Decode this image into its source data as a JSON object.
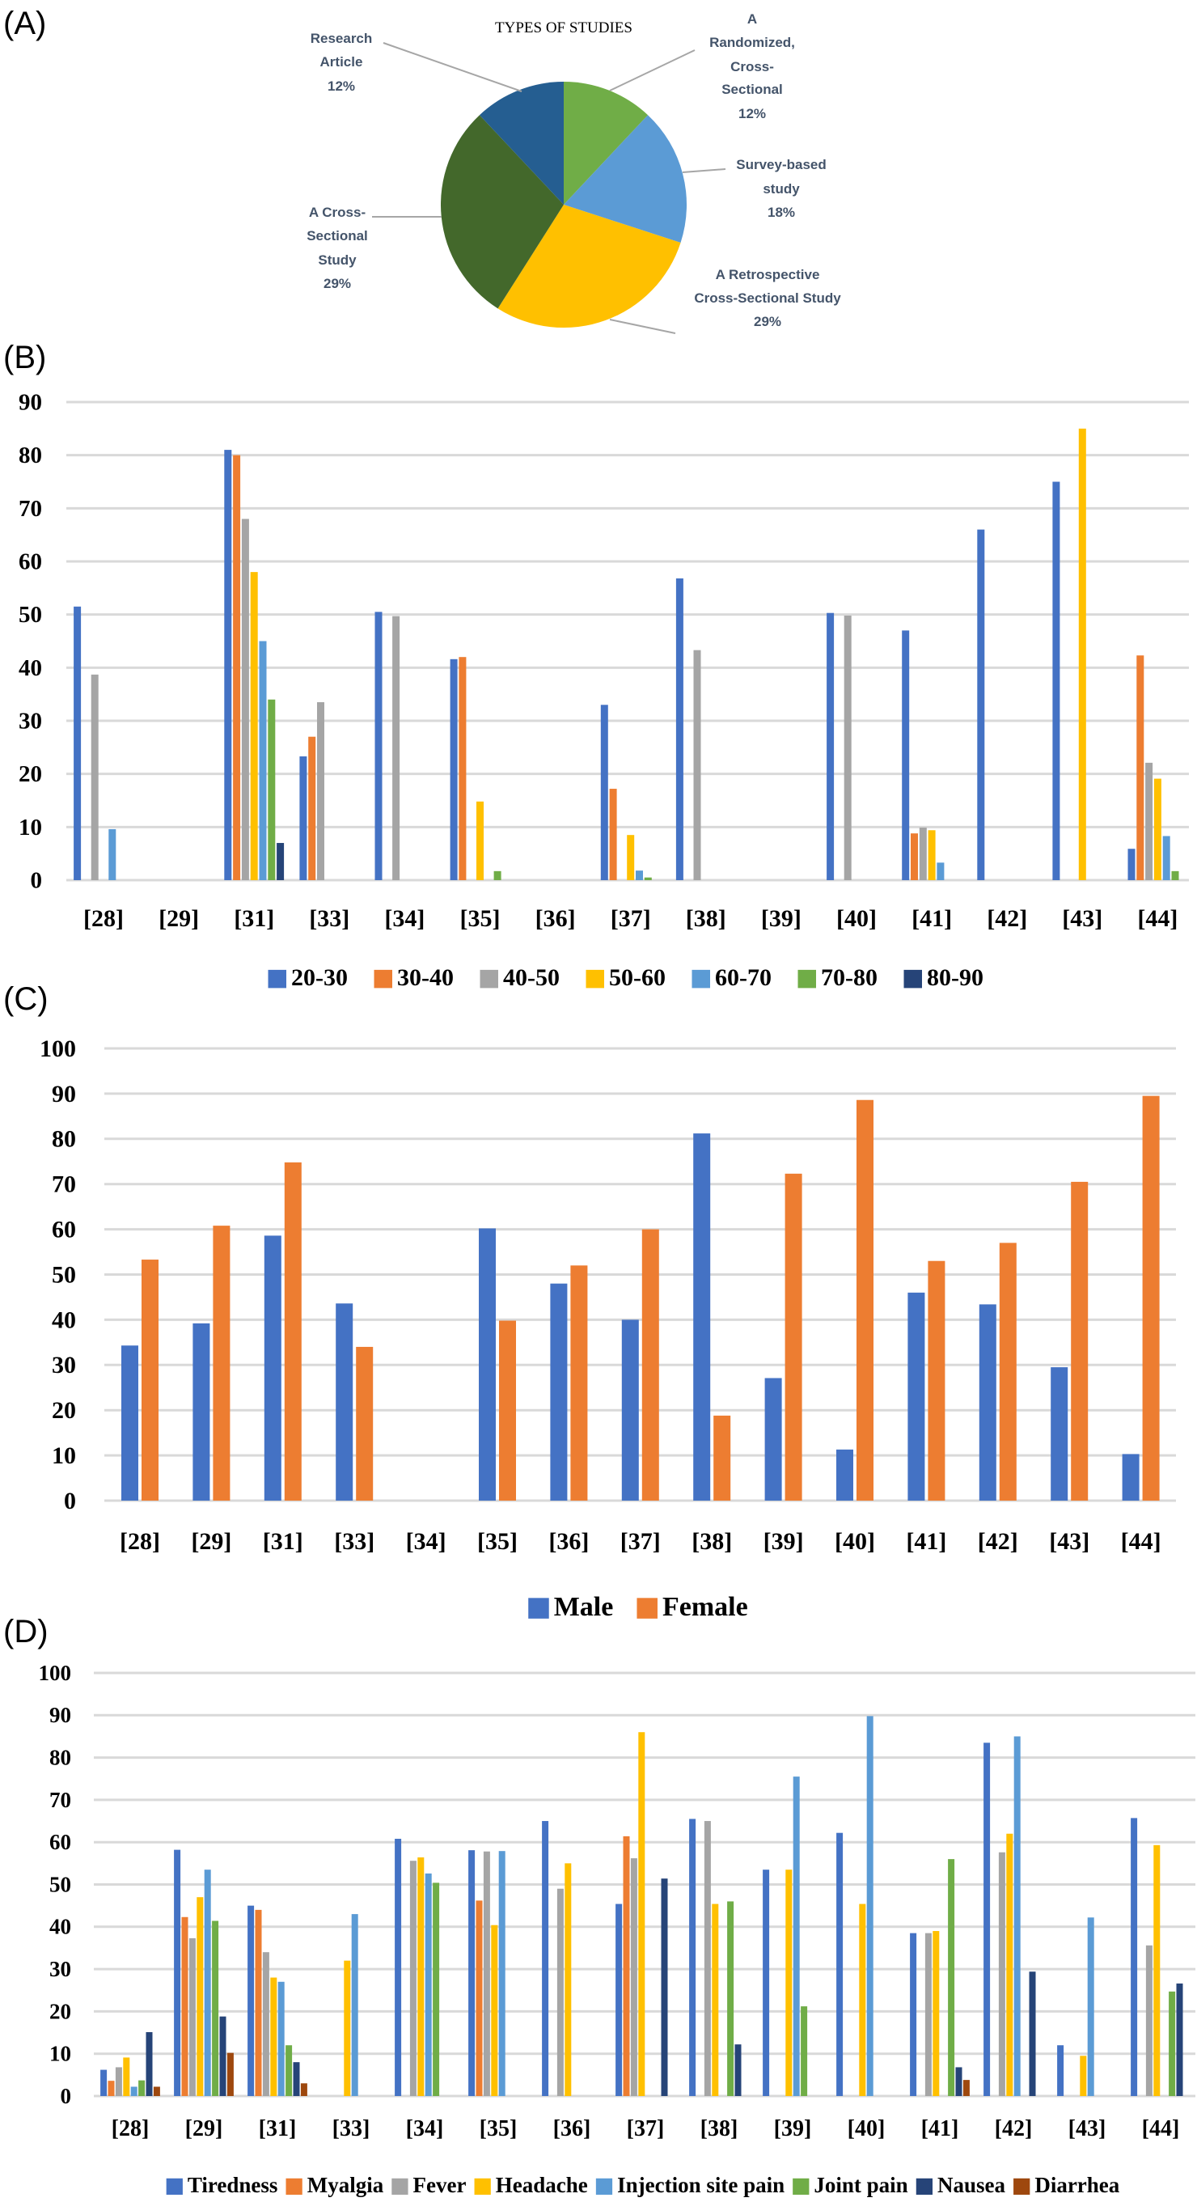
{
  "panel_labels": [
    "(A)",
    "(B)",
    "(C)",
    "(D)"
  ],
  "chart_data": [
    {
      "panel": "(A)",
      "type": "pie",
      "title": "TYPES OF STUDIES",
      "slices": [
        {
          "label_lines": [
            "A",
            "Randomized,",
            "Cross-",
            "Sectional"
          ],
          "value": 12,
          "percent_label": "12%",
          "color": "#70ad47"
        },
        {
          "label_lines": [
            "Survey-based",
            "study"
          ],
          "value": 18,
          "percent_label": "18%",
          "color": "#5b9bd5"
        },
        {
          "label_lines": [
            "A Retrospective",
            "Cross-Sectional Study"
          ],
          "value": 29,
          "percent_label": "29%",
          "color": "#ffc000"
        },
        {
          "label_lines": [
            "A Cross-",
            "Sectional",
            "Study"
          ],
          "value": 29,
          "percent_label": "29%",
          "color": "#43682b"
        },
        {
          "label_lines": [
            "Research",
            "Article"
          ],
          "value": 12,
          "percent_label": "12%",
          "color": "#255e91"
        }
      ]
    },
    {
      "panel": "(B)",
      "type": "bar",
      "categories": [
        "[28]",
        "[29]",
        "[31]",
        "[33]",
        "[34]",
        "[35]",
        "[36]",
        "[37]",
        "[38]",
        "[39]",
        "[40]",
        "[41]",
        "[42]",
        "[43]",
        "[44]"
      ],
      "ylim": [
        0,
        90
      ],
      "yticks": [
        0,
        10,
        20,
        30,
        40,
        50,
        60,
        70,
        80,
        90
      ],
      "grid": true,
      "legend": "bottom",
      "series": [
        {
          "name": "20-30",
          "color": "#4472c4",
          "values": [
            51.5,
            0,
            81,
            23.3,
            50.5,
            41.6,
            0,
            33,
            56.8,
            0,
            50.3,
            47,
            66,
            75,
            5.9
          ]
        },
        {
          "name": "30-40",
          "color": "#ed7d31",
          "values": [
            0,
            0,
            80,
            27,
            0,
            42,
            0,
            17.2,
            0,
            0,
            0,
            8.8,
            0,
            0,
            42.3
          ]
        },
        {
          "name": "40-50",
          "color": "#a5a5a5",
          "values": [
            38.7,
            0,
            68,
            33.5,
            49.7,
            0,
            0,
            0,
            43.3,
            0,
            49.8,
            9.9,
            0,
            0,
            22.1
          ]
        },
        {
          "name": "50-60",
          "color": "#ffc000",
          "values": [
            0,
            0,
            58,
            0,
            0,
            14.8,
            0,
            8.5,
            0,
            0,
            0,
            9.4,
            0,
            85,
            19.1
          ]
        },
        {
          "name": "60-70",
          "color": "#5b9bd5",
          "values": [
            9.6,
            0,
            45,
            0,
            0,
            0,
            0,
            1.8,
            0,
            0,
            0,
            3.3,
            0,
            0,
            8.3
          ]
        },
        {
          "name": "70-80",
          "color": "#70ad47",
          "values": [
            0,
            0,
            34,
            0,
            0,
            1.7,
            0,
            0.5,
            0,
            0,
            0,
            0,
            0,
            0,
            1.7
          ]
        },
        {
          "name": "80-90",
          "color": "#264478",
          "values": [
            0,
            0,
            7,
            0,
            0,
            0,
            0,
            0,
            0,
            0,
            0,
            0,
            0,
            0,
            0
          ]
        }
      ]
    },
    {
      "panel": "(C)",
      "type": "bar",
      "categories": [
        "[28]",
        "[29]",
        "[31]",
        "[33]",
        "[34]",
        "[35]",
        "[36]",
        "[37]",
        "[38]",
        "[39]",
        "[40]",
        "[41]",
        "[42]",
        "[43]",
        "[44]"
      ],
      "ylim": [
        0,
        100
      ],
      "yticks": [
        0,
        10,
        20,
        30,
        40,
        50,
        60,
        70,
        80,
        90,
        100
      ],
      "grid": true,
      "legend": "bottom",
      "series": [
        {
          "name": "Male",
          "color": "#4472c4",
          "values": [
            34.3,
            39.2,
            58.6,
            43.6,
            0,
            60.2,
            48,
            40,
            81.2,
            27.1,
            11.3,
            46,
            43.4,
            29.5,
            10.3
          ]
        },
        {
          "name": "Female",
          "color": "#ed7d31",
          "values": [
            53.3,
            60.8,
            74.8,
            34,
            0,
            39.8,
            52,
            60,
            18.8,
            72.3,
            88.6,
            53,
            57,
            70.5,
            89.5
          ]
        }
      ]
    },
    {
      "panel": "(D)",
      "type": "bar",
      "categories": [
        "[28]",
        "[29]",
        "[31]",
        "[33]",
        "[34]",
        "[35]",
        "[36]",
        "[37]",
        "[38]",
        "[39]",
        "[40]",
        "[41]",
        "[42]",
        "[43]",
        "[44]"
      ],
      "ylim": [
        0,
        100
      ],
      "yticks": [
        0,
        10,
        20,
        30,
        40,
        50,
        60,
        70,
        80,
        90,
        100
      ],
      "grid": true,
      "legend": "bottom",
      "series": [
        {
          "name": "Tiredness",
          "color": "#4472c4",
          "values": [
            6.2,
            58.2,
            45,
            0,
            60.8,
            58.1,
            65,
            45.4,
            65.5,
            53.5,
            62.2,
            38.5,
            83.5,
            12,
            65.7
          ]
        },
        {
          "name": "Myalgia",
          "color": "#ed7d31",
          "values": [
            3.6,
            42.3,
            44,
            0,
            0,
            46.2,
            0,
            61.4,
            0,
            0,
            0,
            0,
            0,
            0,
            0
          ]
        },
        {
          "name": "Fever",
          "color": "#a5a5a5",
          "values": [
            6.8,
            37.3,
            34,
            0,
            55.6,
            57.8,
            49,
            56.2,
            65,
            0,
            0,
            38.5,
            57.6,
            0,
            35.6
          ]
        },
        {
          "name": "Headache",
          "color": "#ffc000",
          "values": [
            9.1,
            47,
            28,
            32,
            56.4,
            40.4,
            55,
            86,
            45.4,
            53.5,
            45.4,
            39,
            62,
            9.5,
            59.3
          ]
        },
        {
          "name": "Injection site pain",
          "color": "#5b9bd5",
          "values": [
            2.2,
            53.5,
            27,
            43,
            52.6,
            57.9,
            0,
            0,
            0,
            75.5,
            89.8,
            0,
            85,
            42.2,
            0
          ]
        },
        {
          "name": "Joint pain",
          "color": "#70ad47",
          "values": [
            3.7,
            41.4,
            12,
            0,
            50.4,
            0,
            0,
            0,
            46,
            21.2,
            0,
            56,
            0,
            0,
            24.7
          ]
        },
        {
          "name": "Nausea",
          "color": "#264478",
          "values": [
            15.1,
            18.8,
            8,
            0,
            0,
            0,
            0,
            51.4,
            12.2,
            0,
            0,
            6.8,
            29.4,
            0,
            26.6
          ]
        },
        {
          "name": "Diarrhea",
          "color": "#9e480e",
          "values": [
            2.2,
            10.2,
            3,
            0,
            0,
            0,
            0,
            0,
            0,
            0,
            0,
            3.8,
            0,
            0,
            0
          ]
        }
      ]
    }
  ]
}
